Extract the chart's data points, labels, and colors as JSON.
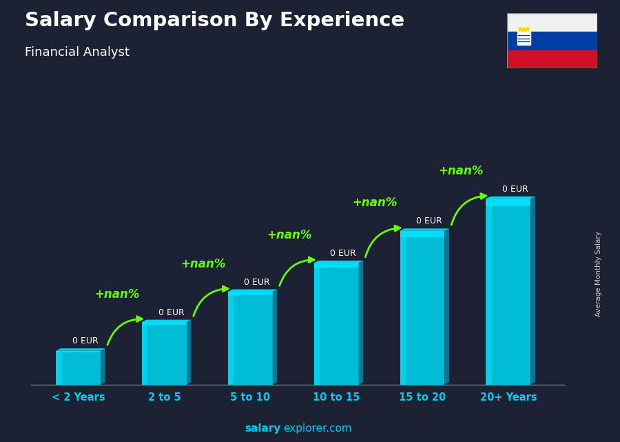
{
  "title": "Salary Comparison By Experience",
  "subtitle": "Financial Analyst",
  "categories": [
    "< 2 Years",
    "2 to 5",
    "5 to 10",
    "10 to 15",
    "15 to 20",
    "20+ Years"
  ],
  "value_labels": [
    "0 EUR",
    "0 EUR",
    "0 EUR",
    "0 EUR",
    "0 EUR",
    "0 EUR"
  ],
  "pct_labels": [
    "+nan%",
    "+nan%",
    "+nan%",
    "+nan%",
    "+nan%"
  ],
  "ylabel": "Average Monthly Salary",
  "watermark_bold": "salary",
  "watermark_regular": "explorer.com",
  "title_color": "#ffffff",
  "subtitle_color": "#ffffff",
  "value_label_color": "#ffffff",
  "pct_color": "#66ff00",
  "arrow_color": "#66ff00",
  "xtick_color": "#00ccee",
  "bar_face_color": "#00bcd4",
  "bar_highlight_color": "#00e5ff",
  "bar_right_color": "#007a99",
  "bar_top_color": "#00d4ee",
  "bg_color": "#1c2233",
  "bar_heights": [
    1.0,
    1.85,
    2.75,
    3.6,
    4.55,
    5.5
  ],
  "bar_width": 0.52,
  "flag_white": "#f0f0f0",
  "flag_blue": "#003DA5",
  "flag_red": "#CE1126"
}
